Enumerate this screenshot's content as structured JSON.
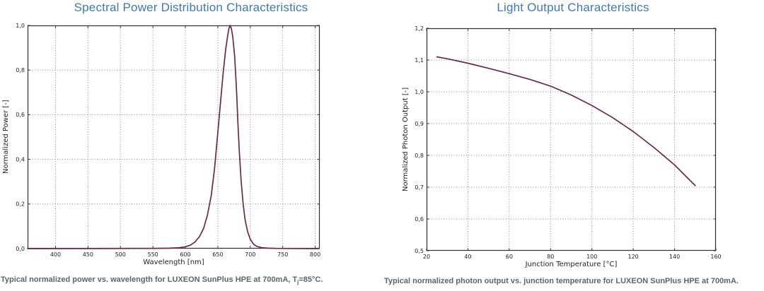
{
  "colors": {
    "title": "#3e79b4",
    "curve": "#6b2b3c",
    "axis": "#2e2e2e",
    "grid": "#8a8a8a",
    "tick_text": "#1f1f1f",
    "caption": "#5d646c",
    "background": "#ffffff"
  },
  "chart_data": [
    {
      "type": "line",
      "title": "Spectral Power Distribution Characteristics",
      "xlabel": "Wavelength [nm]",
      "ylabel": "Normalized Power [-]",
      "xlim": [
        357,
        807
      ],
      "ylim": [
        0,
        1
      ],
      "xticks": [
        400,
        450,
        500,
        550,
        600,
        650,
        700,
        750,
        800
      ],
      "xtick_labels": [
        "400",
        "450",
        "500",
        "550",
        "600",
        "650",
        "700",
        "750",
        "800"
      ],
      "yticks": [
        0,
        0.2,
        0.4,
        0.6,
        0.8,
        1
      ],
      "ytick_labels": [
        "0,0",
        "0,2",
        "0,4",
        "0,6",
        "0,8",
        "1,0"
      ],
      "grid": true,
      "legend": "none",
      "series": [
        {
          "name": "normalized-spectral-power",
          "points": [
            [
              357,
              0
            ],
            [
              550,
              0.001
            ],
            [
              575,
              0.002
            ],
            [
              590,
              0.004
            ],
            [
              600,
              0.008
            ],
            [
              608,
              0.016
            ],
            [
              615,
              0.03
            ],
            [
              622,
              0.055
            ],
            [
              628,
              0.09
            ],
            [
              634,
              0.15
            ],
            [
              640,
              0.24
            ],
            [
              645,
              0.36
            ],
            [
              650,
              0.52
            ],
            [
              654,
              0.65
            ],
            [
              658,
              0.78
            ],
            [
              662,
              0.89
            ],
            [
              665,
              0.95
            ],
            [
              667,
              0.985
            ],
            [
              669,
              1.0
            ],
            [
              671,
              0.985
            ],
            [
              673,
              0.95
            ],
            [
              676,
              0.86
            ],
            [
              679,
              0.7
            ],
            [
              681,
              0.56
            ],
            [
              683,
              0.44
            ],
            [
              686,
              0.3
            ],
            [
              689,
              0.2
            ],
            [
              692,
              0.13
            ],
            [
              696,
              0.075
            ],
            [
              700,
              0.042
            ],
            [
              705,
              0.02
            ],
            [
              710,
              0.01
            ],
            [
              718,
              0.004
            ],
            [
              728,
              0.002
            ],
            [
              740,
              0.001
            ],
            [
              805,
              0
            ]
          ]
        }
      ],
      "caption": {
        "pre": "Typical normalized power vs. wavelength for LUXEON SunPlus HPE at 700mA, T",
        "sub": "j",
        "post": "=85°C."
      }
    },
    {
      "type": "line",
      "title": "Light Output Characteristics",
      "xlabel": "Junction Temperature [°C]",
      "ylabel": "Normalized Photon Output [-]",
      "xlim": [
        20,
        160
      ],
      "ylim": [
        0.5,
        1.2
      ],
      "xticks": [
        20,
        40,
        60,
        80,
        100,
        120,
        140,
        160
      ],
      "xtick_labels": [
        "20",
        "40",
        "60",
        "80",
        "100",
        "120",
        "140",
        "160"
      ],
      "yticks": [
        0.5,
        0.6,
        0.7,
        0.8,
        0.9,
        1.0,
        1.1,
        1.2
      ],
      "ytick_labels": [
        "0,5",
        "0,6",
        "0,7",
        "0,8",
        "0,9",
        "1,0",
        "1,1",
        "1,2"
      ],
      "grid": true,
      "legend": "none",
      "series": [
        {
          "name": "normalized-photon-output",
          "points": [
            [
              25,
              1.11
            ],
            [
              30,
              1.104
            ],
            [
              40,
              1.09
            ],
            [
              50,
              1.074
            ],
            [
              60,
              1.057
            ],
            [
              70,
              1.039
            ],
            [
              80,
              1.018
            ],
            [
              90,
              0.99
            ],
            [
              100,
              0.957
            ],
            [
              110,
              0.919
            ],
            [
              120,
              0.875
            ],
            [
              130,
              0.825
            ],
            [
              140,
              0.77
            ],
            [
              150,
              0.705
            ]
          ]
        }
      ],
      "caption": {
        "pre": "Typical normalized photon output vs. junction temperature for LUXEON SunPlus HPE at 700mA.",
        "sub": "",
        "post": ""
      }
    }
  ]
}
